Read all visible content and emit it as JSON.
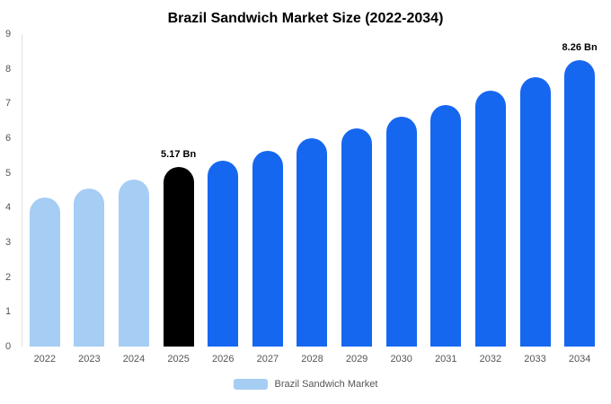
{
  "title": "Brazil Sandwich Market Size (2022-2034)",
  "legend": {
    "label": "Brazil Sandwich Market",
    "swatch_color": "#a6cdf4"
  },
  "colors": {
    "light_blue": "#a6cdf4",
    "blue": "#1667f0",
    "black": "#000000",
    "axis_line": "#e2e2e2",
    "tick_text": "#555555"
  },
  "chart_data": {
    "type": "bar",
    "title": "Brazil Sandwich Market Size (2022-2034)",
    "xlabel": "",
    "ylabel": "",
    "ylim": [
      0,
      9
    ],
    "yticks": [
      0,
      1,
      2,
      3,
      4,
      5,
      6,
      7,
      8,
      9
    ],
    "grid": false,
    "legend_position": "bottom",
    "categories": [
      "2022",
      "2023",
      "2024",
      "2025",
      "2026",
      "2027",
      "2028",
      "2029",
      "2030",
      "2031",
      "2032",
      "2033",
      "2034"
    ],
    "values": [
      4.3,
      4.55,
      4.8,
      5.17,
      5.35,
      5.65,
      6.0,
      6.28,
      6.62,
      6.95,
      7.38,
      7.75,
      8.26
    ],
    "bar_colors": [
      "#a6cdf4",
      "#a6cdf4",
      "#a6cdf4",
      "#000000",
      "#1667f0",
      "#1667f0",
      "#1667f0",
      "#1667f0",
      "#1667f0",
      "#1667f0",
      "#1667f0",
      "#1667f0",
      "#1667f0"
    ],
    "annotations": [
      {
        "index": 3,
        "text": "5.17 Bn"
      },
      {
        "index": 12,
        "text": "8.26 Bn"
      }
    ]
  }
}
